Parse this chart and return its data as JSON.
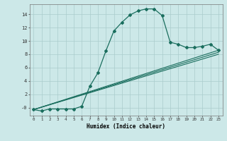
{
  "title": "",
  "xlabel": "Humidex (Indice chaleur)",
  "bg_color": "#cce8e8",
  "grid_color": "#aacccc",
  "line_color": "#1a6e5e",
  "xlim": [
    -0.5,
    23.5
  ],
  "ylim": [
    -1.2,
    15.5
  ],
  "yticks": [
    0,
    2,
    4,
    6,
    8,
    10,
    12,
    14
  ],
  "ytick_labels": [
    "-0",
    "2",
    "4",
    "6",
    "8",
    "10",
    "12",
    "14"
  ],
  "xticks": [
    0,
    1,
    2,
    3,
    4,
    5,
    6,
    7,
    8,
    9,
    10,
    11,
    12,
    13,
    14,
    15,
    16,
    17,
    18,
    19,
    20,
    21,
    22,
    23
  ],
  "main_x": [
    0,
    1,
    2,
    3,
    4,
    5,
    6,
    7,
    8,
    9,
    10,
    11,
    12,
    13,
    14,
    15,
    16,
    17,
    18,
    19,
    20,
    21,
    22,
    23
  ],
  "main_y": [
    -0.3,
    -0.5,
    -0.2,
    -0.2,
    -0.2,
    -0.2,
    0.2,
    3.2,
    5.2,
    8.5,
    11.5,
    12.8,
    13.9,
    14.5,
    14.8,
    14.8,
    13.8,
    9.8,
    9.5,
    9.0,
    9.0,
    9.2,
    9.5,
    8.6
  ],
  "diag_lines": [
    {
      "x": [
        0,
        23
      ],
      "y": [
        -0.3,
        8.0
      ]
    },
    {
      "x": [
        0,
        23
      ],
      "y": [
        -0.3,
        8.3
      ]
    },
    {
      "x": [
        0,
        23
      ],
      "y": [
        -0.3,
        8.6
      ]
    }
  ]
}
